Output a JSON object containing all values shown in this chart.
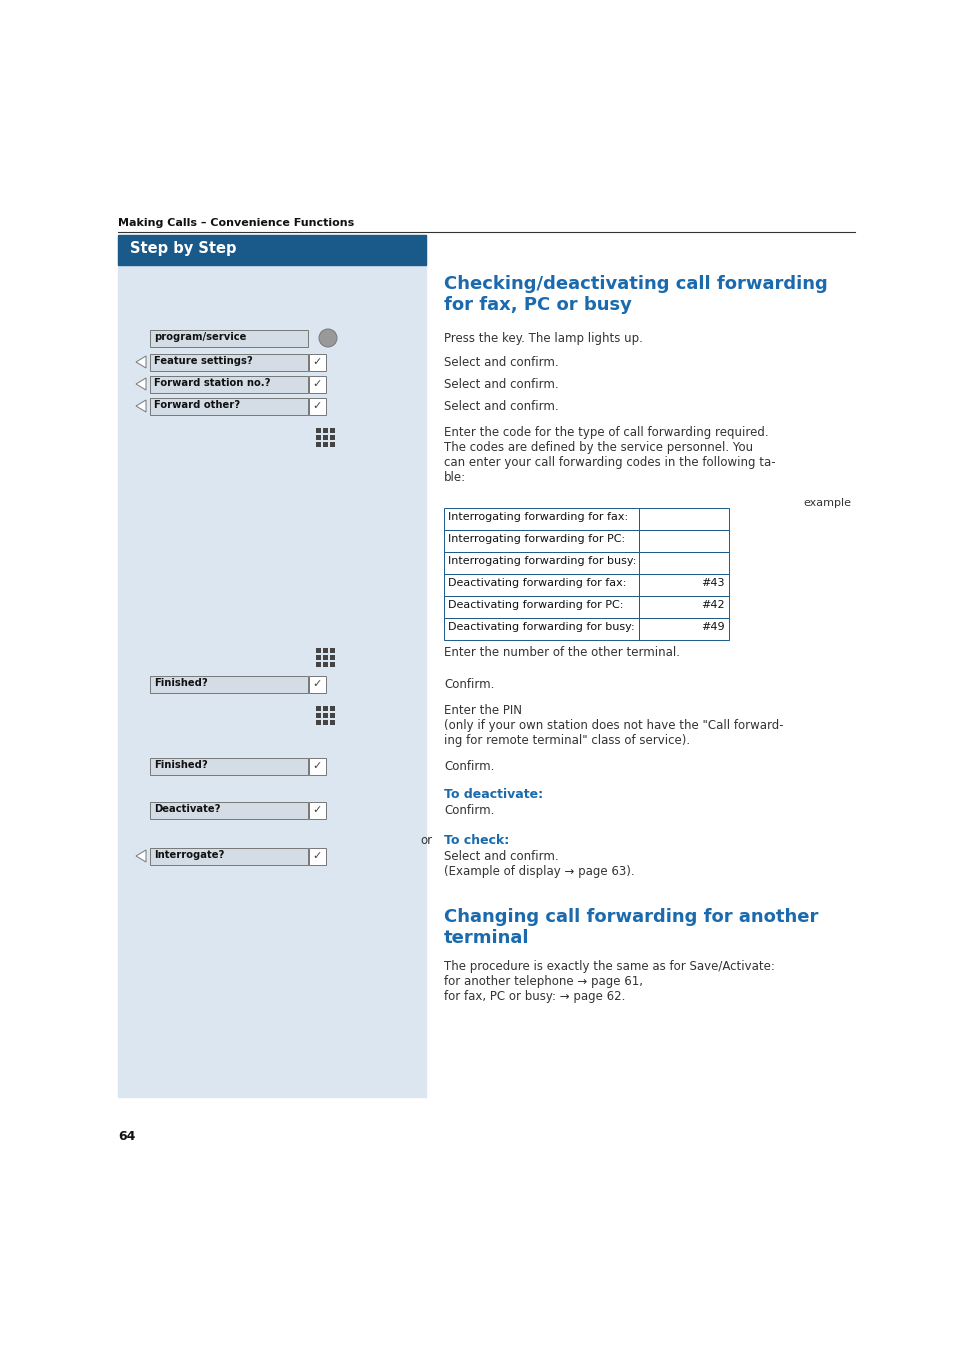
{
  "page_bg": "#ffffff",
  "left_panel_bg": "#dce6f0",
  "header_bar_bg": "#1a5a8a",
  "header_bar_text": "Step by Step",
  "header_bar_text_color": "#ffffff",
  "section_header_color": "#1a6aad",
  "body_text_color": "#333333",
  "table_border_color": "#1a5a8a",
  "top_label": "Making Calls – Convenience Functions",
  "section1_title": "Checking/deactivating call forwarding\nfor fax, PC or busy",
  "section2_title": "Changing call forwarding for another\nterminal",
  "page_number": "64",
  "table_data": [
    [
      "Interrogating forwarding for fax:",
      ""
    ],
    [
      "Interrogating forwarding for PC:",
      ""
    ],
    [
      "Interrogating forwarding for busy:",
      ""
    ],
    [
      "Deactivating forwarding for fax:",
      "#43"
    ],
    [
      "Deactivating forwarding for PC:",
      "#42"
    ],
    [
      "Deactivating forwarding for busy:",
      "#49"
    ]
  ],
  "section2_body": "The procedure is exactly the same as for Save/Activate:\nfor another telephone → page 61,\nfor fax, PC or busy: → page 62."
}
